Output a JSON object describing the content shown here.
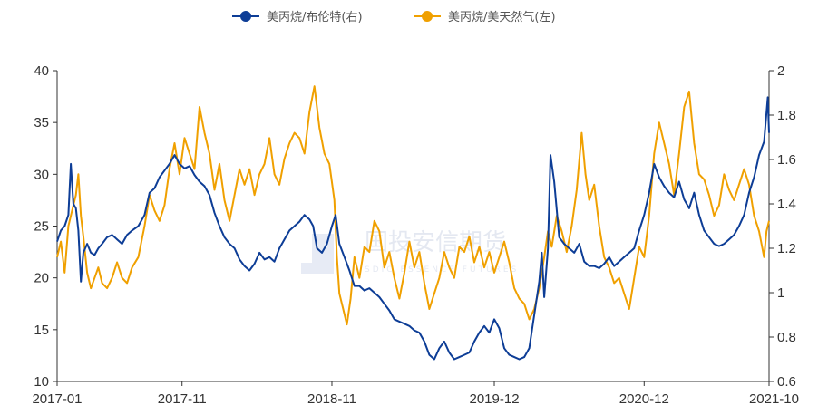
{
  "chart_data": {
    "type": "line",
    "legend": {
      "position": "top"
    },
    "y_left": {
      "min": 10,
      "max": 40,
      "ticks": [
        "10",
        "15",
        "20",
        "25",
        "30",
        "35",
        "40"
      ]
    },
    "y_right": {
      "min": 0.6,
      "max": 2,
      "ticks": [
        "0.6",
        "0.8",
        "1",
        "1.2",
        "1.4",
        "1.6",
        "1.8",
        "2"
      ]
    },
    "x_ticks": [
      "2017-01",
      "2017-11",
      "2018-11",
      "2019-12",
      "2020-12",
      "2021-10"
    ],
    "x_tick_pos": [
      0,
      10,
      22,
      35,
      47,
      57
    ],
    "series": [
      {
        "name": "美丙烷/布伦特(右)",
        "axis": "right",
        "color": "#0d3d96",
        "points": [
          [
            0,
            1.23
          ],
          [
            0.3,
            1.28
          ],
          [
            0.6,
            1.3
          ],
          [
            0.9,
            1.35
          ],
          [
            1.1,
            1.58
          ],
          [
            1.3,
            1.4
          ],
          [
            1.5,
            1.38
          ],
          [
            1.7,
            1.28
          ],
          [
            1.9,
            1.05
          ],
          [
            2.1,
            1.18
          ],
          [
            2.4,
            1.22
          ],
          [
            2.7,
            1.18
          ],
          [
            3.0,
            1.17
          ],
          [
            3.3,
            1.2
          ],
          [
            3.6,
            1.22
          ],
          [
            4.0,
            1.25
          ],
          [
            4.4,
            1.26
          ],
          [
            4.8,
            1.24
          ],
          [
            5.2,
            1.22
          ],
          [
            5.6,
            1.26
          ],
          [
            6.0,
            1.28
          ],
          [
            6.5,
            1.3
          ],
          [
            7.0,
            1.35
          ],
          [
            7.4,
            1.45
          ],
          [
            7.8,
            1.47
          ],
          [
            8.2,
            1.52
          ],
          [
            8.6,
            1.55
          ],
          [
            9.0,
            1.58
          ],
          [
            9.4,
            1.62
          ],
          [
            9.8,
            1.58
          ],
          [
            10.2,
            1.56
          ],
          [
            10.6,
            1.57
          ],
          [
            11.0,
            1.53
          ],
          [
            11.4,
            1.5
          ],
          [
            11.8,
            1.48
          ],
          [
            12.2,
            1.44
          ],
          [
            12.6,
            1.36
          ],
          [
            13.0,
            1.3
          ],
          [
            13.4,
            1.25
          ],
          [
            13.8,
            1.22
          ],
          [
            14.2,
            1.2
          ],
          [
            14.6,
            1.15
          ],
          [
            15.0,
            1.12
          ],
          [
            15.4,
            1.1
          ],
          [
            15.8,
            1.13
          ],
          [
            16.2,
            1.18
          ],
          [
            16.6,
            1.15
          ],
          [
            17.0,
            1.16
          ],
          [
            17.4,
            1.14
          ],
          [
            17.8,
            1.2
          ],
          [
            18.2,
            1.24
          ],
          [
            18.6,
            1.28
          ],
          [
            19.0,
            1.3
          ],
          [
            19.4,
            1.32
          ],
          [
            19.8,
            1.35
          ],
          [
            20.2,
            1.33
          ],
          [
            20.5,
            1.3
          ],
          [
            20.8,
            1.2
          ],
          [
            21.2,
            1.18
          ],
          [
            21.6,
            1.22
          ],
          [
            22.0,
            1.3
          ],
          [
            22.3,
            1.35
          ],
          [
            22.6,
            1.22
          ],
          [
            23.0,
            1.16
          ],
          [
            23.4,
            1.1
          ],
          [
            23.8,
            1.03
          ],
          [
            24.2,
            1.03
          ],
          [
            24.6,
            1.01
          ],
          [
            25.0,
            1.02
          ],
          [
            25.4,
            1.0
          ],
          [
            25.8,
            0.98
          ],
          [
            26.2,
            0.95
          ],
          [
            26.6,
            0.92
          ],
          [
            27.0,
            0.88
          ],
          [
            27.4,
            0.87
          ],
          [
            27.8,
            0.86
          ],
          [
            28.2,
            0.85
          ],
          [
            28.6,
            0.83
          ],
          [
            29.0,
            0.82
          ],
          [
            29.4,
            0.78
          ],
          [
            29.8,
            0.72
          ],
          [
            30.2,
            0.7
          ],
          [
            30.6,
            0.75
          ],
          [
            31.0,
            0.78
          ],
          [
            31.4,
            0.73
          ],
          [
            31.8,
            0.7
          ],
          [
            32.2,
            0.71
          ],
          [
            32.6,
            0.72
          ],
          [
            33.0,
            0.73
          ],
          [
            33.4,
            0.78
          ],
          [
            33.8,
            0.82
          ],
          [
            34.2,
            0.85
          ],
          [
            34.6,
            0.82
          ],
          [
            35.0,
            0.88
          ],
          [
            35.4,
            0.84
          ],
          [
            35.8,
            0.75
          ],
          [
            36.2,
            0.72
          ],
          [
            36.6,
            0.71
          ],
          [
            37.0,
            0.7
          ],
          [
            37.4,
            0.71
          ],
          [
            37.8,
            0.75
          ],
          [
            38.2,
            0.9
          ],
          [
            38.6,
            1.05
          ],
          [
            38.8,
            1.18
          ],
          [
            39.0,
            0.98
          ],
          [
            39.3,
            1.2
          ],
          [
            39.5,
            1.62
          ],
          [
            39.8,
            1.5
          ],
          [
            40.2,
            1.25
          ],
          [
            40.6,
            1.22
          ],
          [
            41.0,
            1.2
          ],
          [
            41.4,
            1.18
          ],
          [
            41.8,
            1.22
          ],
          [
            42.2,
            1.14
          ],
          [
            42.6,
            1.12
          ],
          [
            43.0,
            1.12
          ],
          [
            43.4,
            1.11
          ],
          [
            43.8,
            1.13
          ],
          [
            44.2,
            1.16
          ],
          [
            44.6,
            1.12
          ],
          [
            45.0,
            1.14
          ],
          [
            45.4,
            1.16
          ],
          [
            45.8,
            1.18
          ],
          [
            46.2,
            1.2
          ],
          [
            46.6,
            1.28
          ],
          [
            47.0,
            1.35
          ],
          [
            47.4,
            1.45
          ],
          [
            47.8,
            1.58
          ],
          [
            48.2,
            1.52
          ],
          [
            48.6,
            1.48
          ],
          [
            49.0,
            1.45
          ],
          [
            49.4,
            1.43
          ],
          [
            49.8,
            1.5
          ],
          [
            50.2,
            1.42
          ],
          [
            50.6,
            1.38
          ],
          [
            51.0,
            1.45
          ],
          [
            51.4,
            1.35
          ],
          [
            51.8,
            1.28
          ],
          [
            52.2,
            1.25
          ],
          [
            52.6,
            1.22
          ],
          [
            53.0,
            1.21
          ],
          [
            53.4,
            1.22
          ],
          [
            53.8,
            1.24
          ],
          [
            54.2,
            1.26
          ],
          [
            54.6,
            1.3
          ],
          [
            55.0,
            1.35
          ],
          [
            55.4,
            1.45
          ],
          [
            55.8,
            1.52
          ],
          [
            56.2,
            1.62
          ],
          [
            56.6,
            1.68
          ],
          [
            56.9,
            1.88
          ],
          [
            57.0,
            1.72
          ]
        ]
      },
      {
        "name": "美丙烷/美天然气(左)",
        "axis": "left",
        "color": "#f0a000",
        "points": [
          [
            0,
            22.0
          ],
          [
            0.3,
            23.5
          ],
          [
            0.6,
            20.5
          ],
          [
            0.9,
            25.0
          ],
          [
            1.2,
            26.5
          ],
          [
            1.5,
            28.0
          ],
          [
            1.7,
            30.0
          ],
          [
            1.9,
            26.0
          ],
          [
            2.1,
            24.0
          ],
          [
            2.4,
            20.5
          ],
          [
            2.7,
            19.0
          ],
          [
            3.0,
            20.0
          ],
          [
            3.3,
            21.0
          ],
          [
            3.6,
            19.5
          ],
          [
            4.0,
            19.0
          ],
          [
            4.4,
            20.0
          ],
          [
            4.8,
            21.5
          ],
          [
            5.2,
            20.0
          ],
          [
            5.6,
            19.5
          ],
          [
            6.0,
            21.0
          ],
          [
            6.5,
            22.0
          ],
          [
            7.0,
            25.0
          ],
          [
            7.4,
            28.0
          ],
          [
            7.8,
            26.5
          ],
          [
            8.2,
            25.5
          ],
          [
            8.6,
            27.0
          ],
          [
            9.0,
            30.5
          ],
          [
            9.4,
            33.0
          ],
          [
            9.8,
            30.0
          ],
          [
            10.2,
            33.5
          ],
          [
            10.6,
            32.0
          ],
          [
            11.0,
            30.5
          ],
          [
            11.4,
            36.5
          ],
          [
            11.8,
            34.0
          ],
          [
            12.2,
            32.0
          ],
          [
            12.6,
            28.5
          ],
          [
            13.0,
            31.0
          ],
          [
            13.4,
            27.5
          ],
          [
            13.8,
            25.5
          ],
          [
            14.2,
            28.0
          ],
          [
            14.6,
            30.5
          ],
          [
            15.0,
            29.0
          ],
          [
            15.4,
            30.5
          ],
          [
            15.8,
            28.0
          ],
          [
            16.2,
            30.0
          ],
          [
            16.6,
            31.0
          ],
          [
            17.0,
            33.5
          ],
          [
            17.4,
            30.0
          ],
          [
            17.8,
            29.0
          ],
          [
            18.2,
            31.5
          ],
          [
            18.6,
            33.0
          ],
          [
            19.0,
            34.0
          ],
          [
            19.4,
            33.5
          ],
          [
            19.8,
            32.0
          ],
          [
            20.2,
            36.0
          ],
          [
            20.6,
            38.5
          ],
          [
            21.0,
            34.5
          ],
          [
            21.4,
            32.0
          ],
          [
            21.8,
            31.0
          ],
          [
            22.2,
            27.5
          ],
          [
            22.4,
            22.0
          ],
          [
            22.6,
            18.5
          ],
          [
            22.9,
            17.0
          ],
          [
            23.2,
            15.5
          ],
          [
            23.5,
            18.0
          ],
          [
            23.8,
            22.0
          ],
          [
            24.2,
            20.0
          ],
          [
            24.6,
            23.0
          ],
          [
            25.0,
            22.5
          ],
          [
            25.4,
            25.5
          ],
          [
            25.8,
            24.5
          ],
          [
            26.2,
            21.0
          ],
          [
            26.6,
            22.5
          ],
          [
            27.0,
            20.0
          ],
          [
            27.4,
            18.0
          ],
          [
            27.8,
            20.5
          ],
          [
            28.2,
            23.5
          ],
          [
            28.6,
            21.0
          ],
          [
            29.0,
            22.5
          ],
          [
            29.4,
            19.5
          ],
          [
            29.8,
            17.0
          ],
          [
            30.2,
            18.5
          ],
          [
            30.6,
            20.0
          ],
          [
            31.0,
            22.5
          ],
          [
            31.4,
            21.0
          ],
          [
            31.8,
            20.0
          ],
          [
            32.2,
            23.0
          ],
          [
            32.6,
            22.5
          ],
          [
            33.0,
            24.0
          ],
          [
            33.4,
            21.5
          ],
          [
            33.8,
            23.0
          ],
          [
            34.2,
            21.0
          ],
          [
            34.6,
            22.5
          ],
          [
            35.0,
            20.5
          ],
          [
            35.4,
            22.0
          ],
          [
            35.8,
            23.5
          ],
          [
            36.2,
            21.5
          ],
          [
            36.6,
            19.0
          ],
          [
            37.0,
            18.0
          ],
          [
            37.4,
            17.5
          ],
          [
            37.8,
            16.0
          ],
          [
            38.2,
            17.0
          ],
          [
            38.6,
            19.0
          ],
          [
            39.0,
            22.0
          ],
          [
            39.3,
            24.5
          ],
          [
            39.6,
            23.0
          ],
          [
            40.0,
            26.0
          ],
          [
            40.4,
            24.5
          ],
          [
            40.8,
            22.5
          ],
          [
            41.2,
            25.0
          ],
          [
            41.6,
            28.5
          ],
          [
            42.0,
            34.0
          ],
          [
            42.3,
            30.0
          ],
          [
            42.6,
            27.5
          ],
          [
            43.0,
            29.0
          ],
          [
            43.4,
            25.0
          ],
          [
            43.8,
            22.0
          ],
          [
            44.2,
            21.0
          ],
          [
            44.6,
            19.5
          ],
          [
            45.0,
            20.0
          ],
          [
            45.4,
            18.5
          ],
          [
            45.8,
            17.0
          ],
          [
            46.2,
            20.0
          ],
          [
            46.6,
            23.0
          ],
          [
            47.0,
            22.0
          ],
          [
            47.4,
            26.0
          ],
          [
            47.8,
            32.0
          ],
          [
            48.2,
            35.0
          ],
          [
            48.6,
            33.0
          ],
          [
            49.0,
            31.0
          ],
          [
            49.4,
            28.0
          ],
          [
            49.8,
            32.0
          ],
          [
            50.2,
            36.5
          ],
          [
            50.6,
            38.0
          ],
          [
            51.0,
            33.0
          ],
          [
            51.4,
            30.0
          ],
          [
            51.8,
            29.5
          ],
          [
            52.2,
            28.0
          ],
          [
            52.6,
            26.0
          ],
          [
            53.0,
            27.0
          ],
          [
            53.4,
            30.0
          ],
          [
            53.8,
            28.5
          ],
          [
            54.2,
            27.5
          ],
          [
            54.6,
            29.0
          ],
          [
            55.0,
            30.5
          ],
          [
            55.4,
            29.0
          ],
          [
            55.8,
            26.0
          ],
          [
            56.2,
            24.5
          ],
          [
            56.6,
            22.0
          ],
          [
            56.8,
            24.5
          ],
          [
            57.0,
            25.5
          ]
        ]
      }
    ]
  }
}
